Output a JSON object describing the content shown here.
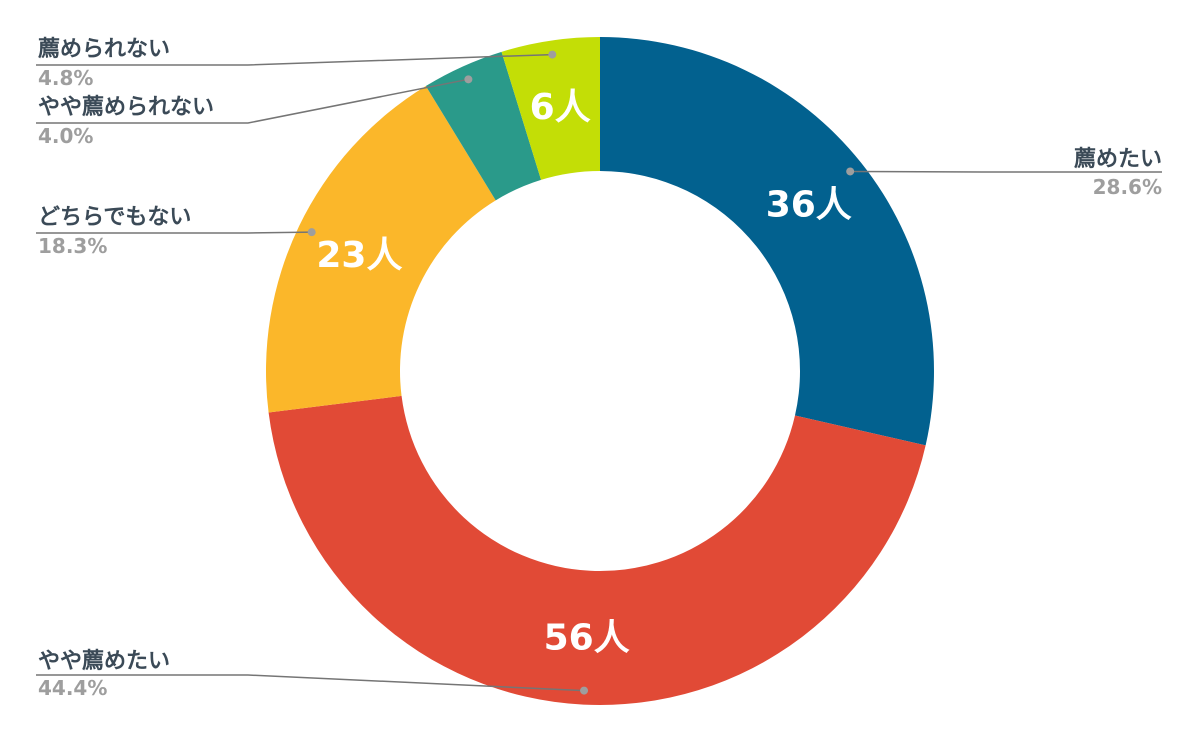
{
  "chart_data": {
    "type": "pie",
    "donut": true,
    "categories": [
      "薦めたい",
      "やや薦めたい",
      "どちらでもない",
      "やや薦められない",
      "薦められない"
    ],
    "values": [
      36,
      56,
      23,
      5,
      6
    ],
    "value_labels": [
      "36人",
      "56人",
      "23人",
      "",
      "6人"
    ],
    "percent_labels": [
      "28.6%",
      "44.4%",
      "18.3%",
      "4.0%",
      "4.8%"
    ],
    "colors": [
      "#02618f",
      "#e14a36",
      "#fbb72a",
      "#2a9a8a",
      "#c3de06"
    ],
    "legend": "callout labels outside the ring"
  }
}
